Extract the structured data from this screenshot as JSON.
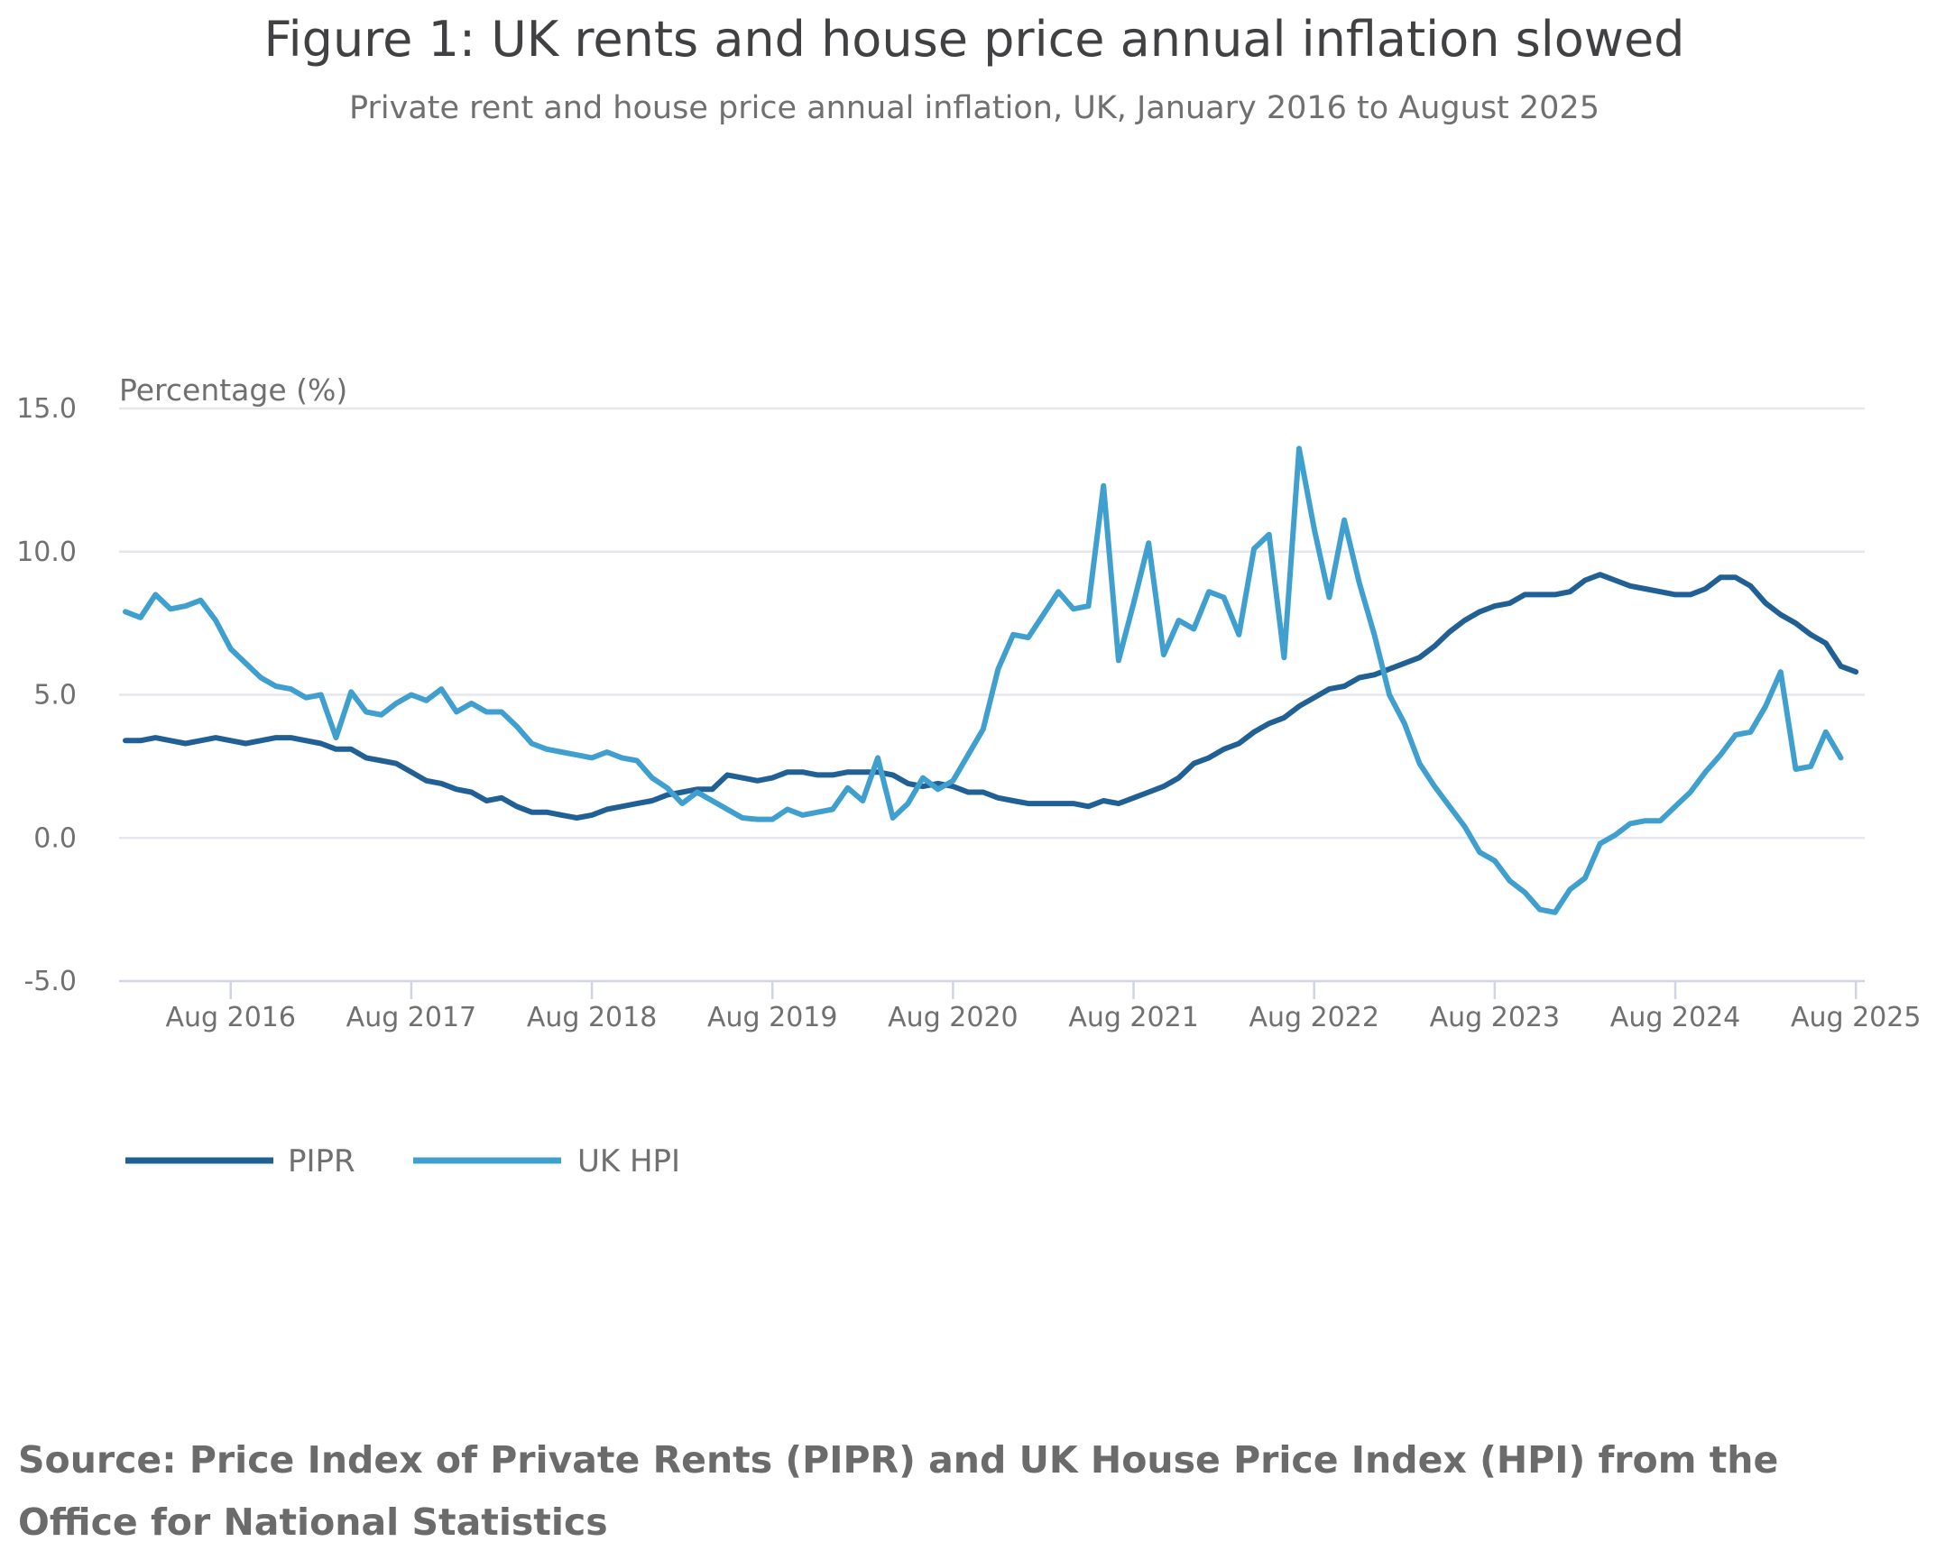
{
  "chart_data": {
    "type": "line",
    "title": "Figure 1: UK rents and house price annual inflation slowed",
    "subtitle": "Private rent and house price annual inflation, UK, January 2016 to August 2025",
    "ylabel": "Percentage (%)",
    "xlabel": "",
    "x_start": "Jan 2016",
    "x_end": "Aug 2025",
    "x_tick_labels": [
      "Aug 2016",
      "Aug 2017",
      "Aug 2018",
      "Aug 2019",
      "Aug 2020",
      "Aug 2021",
      "Aug 2022",
      "Aug 2023",
      "Aug 2024",
      "Aug 2025"
    ],
    "y_tick_labels": [
      "15.0",
      "10.0",
      "5.0",
      "0.0",
      "-5.0"
    ],
    "y_ticks": [
      15,
      10,
      5,
      0,
      -5
    ],
    "ylim": [
      -5,
      15
    ],
    "grid": true,
    "legend_position": "bottom-left",
    "series": [
      {
        "name": "PIPR",
        "color": "#206095",
        "values": [
          3.4,
          3.4,
          3.5,
          3.4,
          3.3,
          3.4,
          3.5,
          3.4,
          3.3,
          3.4,
          3.5,
          3.5,
          3.4,
          3.3,
          3.1,
          3.1,
          2.8,
          2.7,
          2.6,
          2.3,
          2.0,
          1.9,
          1.7,
          1.6,
          1.3,
          1.4,
          1.1,
          0.9,
          0.9,
          0.8,
          0.7,
          0.8,
          1.0,
          1.1,
          1.2,
          1.3,
          1.5,
          1.6,
          1.7,
          1.7,
          2.2,
          2.1,
          2.0,
          2.1,
          2.3,
          2.3,
          2.2,
          2.2,
          2.3,
          2.3,
          2.3,
          2.2,
          1.9,
          1.8,
          1.9,
          1.8,
          1.6,
          1.6,
          1.4,
          1.3,
          1.2,
          1.2,
          1.2,
          1.2,
          1.1,
          1.3,
          1.2,
          1.4,
          1.6,
          1.8,
          2.1,
          2.6,
          2.8,
          3.1,
          3.3,
          3.7,
          4.0,
          4.2,
          4.6,
          4.9,
          5.2,
          5.3,
          5.6,
          5.7,
          5.9,
          6.1,
          6.3,
          6.7,
          7.2,
          7.6,
          7.9,
          8.1,
          8.2,
          8.5,
          8.5,
          8.5,
          8.6,
          9.0,
          9.2,
          9.0,
          8.8,
          8.7,
          8.6,
          8.5,
          8.5,
          8.7,
          9.1,
          9.1,
          8.8,
          8.2,
          7.8,
          7.5,
          7.1,
          6.8,
          6.0,
          5.8
        ]
      },
      {
        "name": "UK HPI",
        "color": "#3fa0cf",
        "values": [
          7.9,
          7.7,
          8.5,
          8.0,
          8.1,
          8.3,
          7.6,
          6.6,
          6.1,
          5.6,
          5.3,
          5.2,
          4.9,
          5.0,
          3.5,
          5.1,
          4.4,
          4.3,
          4.7,
          5.0,
          4.8,
          5.2,
          4.4,
          4.7,
          4.4,
          4.4,
          3.9,
          3.3,
          3.1,
          3.0,
          2.9,
          2.8,
          3.0,
          2.8,
          2.7,
          2.1,
          1.75,
          1.2,
          1.6,
          1.3,
          1.0,
          0.7,
          0.65,
          0.65,
          1.0,
          0.8,
          0.9,
          1.0,
          1.75,
          1.3,
          2.8,
          0.7,
          1.2,
          2.1,
          1.7,
          2.0,
          2.9,
          3.8,
          5.9,
          7.1,
          7.0,
          7.8,
          8.6,
          8.0,
          8.1,
          12.3,
          6.2,
          8.2,
          10.3,
          6.4,
          7.6,
          7.3,
          8.6,
          8.4,
          7.1,
          10.1,
          10.6,
          6.3,
          13.6,
          10.8,
          8.4,
          11.1,
          8.9,
          7.1,
          5.0,
          4.0,
          2.6,
          1.8,
          1.1,
          0.4,
          -0.5,
          -0.8,
          -1.5,
          -1.9,
          -2.5,
          -2.6,
          -1.8,
          -1.4,
          -0.2,
          0.1,
          0.5,
          0.6,
          0.6,
          1.1,
          1.6,
          2.3,
          2.9,
          3.6,
          3.7,
          4.6,
          5.8,
          2.4,
          2.5,
          3.7,
          2.8
        ]
      }
    ]
  },
  "source": "Source: Price Index of Private Rents (PIPR) and UK House Price Index (HPI) from the Office for National Statistics"
}
